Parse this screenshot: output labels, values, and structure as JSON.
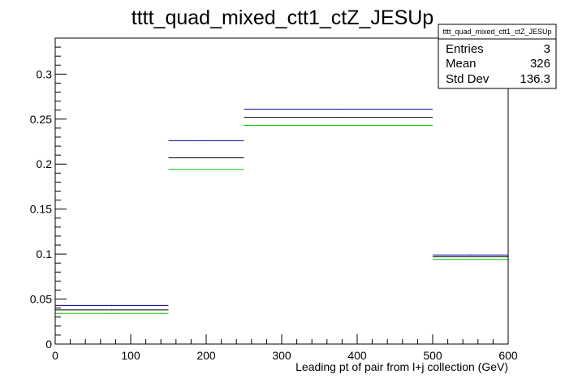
{
  "chart_data": {
    "type": "bar",
    "title": "tttt_quad_mixed_ctt1_ctZ_JESUp",
    "xlabel": "Leading pt of pair from l+j collection (GeV)",
    "ylabel": "",
    "xlim": [
      0,
      600
    ],
    "ylim": [
      0,
      0.34
    ],
    "x_ticks": [
      "0",
      "100",
      "200",
      "300",
      "400",
      "500",
      "600"
    ],
    "y_ticks": [
      "0",
      "0.05",
      "0.1",
      "0.15",
      "0.2",
      "0.25",
      "0.3"
    ],
    "bin_edges": [
      0,
      150,
      250,
      500,
      600
    ],
    "grid": false,
    "series": [
      {
        "color": "#000099",
        "values": [
          0.043,
          0.226,
          0.261,
          0.099
        ]
      },
      {
        "color": "#000000",
        "values": [
          0.038,
          0.207,
          0.252,
          0.097
        ]
      },
      {
        "color": "#00cc00",
        "values": [
          0.034,
          0.194,
          0.243,
          0.094
        ]
      }
    ],
    "stats_box": {
      "title": "tttt_quad_mixed_ctt1_ctZ_JESUp",
      "rows": [
        {
          "label": "Entries",
          "value": "3"
        },
        {
          "label": "Mean",
          "value": "326"
        },
        {
          "label": "Std Dev",
          "value": "136.3"
        }
      ]
    }
  }
}
